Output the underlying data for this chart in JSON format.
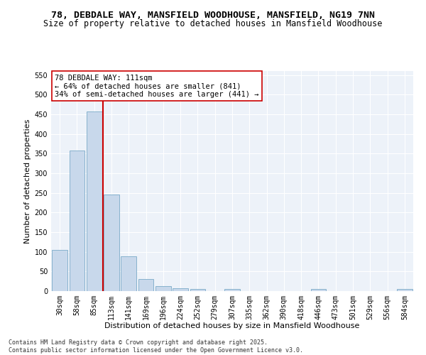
{
  "title_line1": "78, DEBDALE WAY, MANSFIELD WOODHOUSE, MANSFIELD, NG19 7NN",
  "title_line2": "Size of property relative to detached houses in Mansfield Woodhouse",
  "xlabel": "Distribution of detached houses by size in Mansfield Woodhouse",
  "ylabel": "Number of detached properties",
  "categories": [
    "30sqm",
    "58sqm",
    "85sqm",
    "113sqm",
    "141sqm",
    "169sqm",
    "196sqm",
    "224sqm",
    "252sqm",
    "279sqm",
    "307sqm",
    "335sqm",
    "362sqm",
    "390sqm",
    "418sqm",
    "446sqm",
    "473sqm",
    "501sqm",
    "529sqm",
    "556sqm",
    "584sqm"
  ],
  "values": [
    105,
    357,
    457,
    245,
    88,
    30,
    13,
    8,
    5,
    0,
    5,
    0,
    0,
    0,
    0,
    5,
    0,
    0,
    0,
    0,
    5
  ],
  "bar_color": "#c8d8eb",
  "bar_edge_color": "#7aaac8",
  "vline_color": "#cc0000",
  "vline_index": 2.5,
  "annotation_line1": "78 DEBDALE WAY: 111sqm",
  "annotation_line2": "← 64% of detached houses are smaller (841)",
  "annotation_line3": "34% of semi-detached houses are larger (441) →",
  "annotation_box_facecolor": "#ffffff",
  "annotation_box_edgecolor": "#cc0000",
  "ylim": [
    0,
    560
  ],
  "yticks": [
    0,
    50,
    100,
    150,
    200,
    250,
    300,
    350,
    400,
    450,
    500,
    550
  ],
  "bg_color": "#ffffff",
  "plot_bg_color": "#edf2f9",
  "grid_color": "#ffffff",
  "title_fontsize": 9.5,
  "subtitle_fontsize": 8.5,
  "axis_label_fontsize": 8,
  "tick_fontsize": 7,
  "annotation_fontsize": 7.5,
  "footer_fontsize": 6,
  "footer": "Contains HM Land Registry data © Crown copyright and database right 2025.\nContains public sector information licensed under the Open Government Licence v3.0."
}
